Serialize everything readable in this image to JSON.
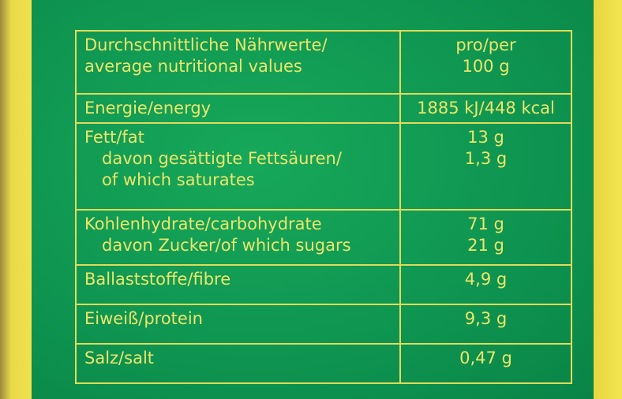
{
  "table": {
    "header": {
      "label": [
        "Durchschnittliche Nährwerte/",
        "average nutritional values"
      ],
      "value": [
        "pro/per",
        "100 g"
      ]
    },
    "rows": [
      {
        "label": [
          "Energie/energy"
        ],
        "value": [
          "1885 kJ/448 kcal"
        ]
      },
      {
        "label": [
          "Fett/fat",
          "davon gesättigte Fettsäuren/",
          "of which saturates"
        ],
        "value": [
          "13 g",
          "1,3 g"
        ]
      },
      {
        "label": [
          "Kohlenhydrate/carbohydrate",
          "davon Zucker/of which sugars"
        ],
        "value": [
          "71 g",
          "21 g"
        ]
      },
      {
        "label": [
          "Ballaststoffe/fibre"
        ],
        "value": [
          "4,9 g"
        ]
      },
      {
        "label": [
          "Eiweiß/protein"
        ],
        "value": [
          "9,3 g"
        ]
      },
      {
        "label": [
          "Salz/salt"
        ],
        "value": [
          "0,47 g"
        ]
      }
    ]
  }
}
